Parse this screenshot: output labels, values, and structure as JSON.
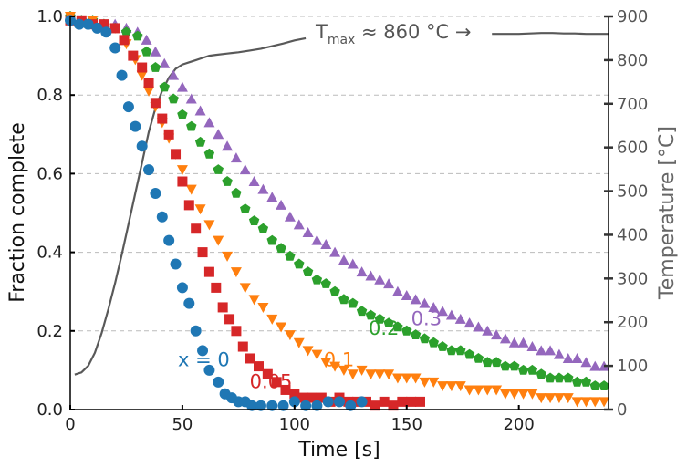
{
  "chart_data": {
    "type": "scatter",
    "xlabel": "Time [s]",
    "ylabel": "Fraction complete",
    "y2label": "Temperature [°C]",
    "xlim": [
      0,
      240
    ],
    "ylim": [
      0,
      1.0
    ],
    "y2lim": [
      0,
      900
    ],
    "xticks": [
      0,
      50,
      100,
      150,
      200
    ],
    "yticks": [
      0.0,
      0.2,
      0.4,
      0.6,
      0.8,
      1.0
    ],
    "yticklabels": [
      "0.0",
      "0.2",
      "0.4",
      "0.6",
      "0.8",
      "1.0"
    ],
    "y2ticks": [
      0,
      100,
      200,
      300,
      400,
      500,
      600,
      700,
      800,
      900
    ],
    "grid": "horizontal dashed",
    "annotation": {
      "text_pre": "T",
      "text_sub": "max",
      "text_post": " ≈ 860 °C →"
    },
    "temperature_line": {
      "color": "#595959",
      "x": [
        2,
        5,
        8,
        11,
        14,
        17,
        20,
        23,
        26,
        29,
        32,
        35,
        38,
        41,
        44,
        47,
        50,
        53,
        56,
        59,
        62,
        65,
        70,
        75,
        80,
        85,
        90,
        95,
        100,
        105,
        188,
        195,
        200,
        205,
        210,
        215,
        220,
        225,
        230,
        235,
        240
      ],
      "y": [
        80,
        85,
        100,
        130,
        175,
        230,
        290,
        355,
        425,
        495,
        565,
        635,
        690,
        730,
        760,
        780,
        790,
        795,
        800,
        805,
        810,
        812,
        815,
        818,
        822,
        826,
        832,
        838,
        845,
        850,
        860,
        860,
        860,
        861,
        862,
        862,
        861,
        861,
        860,
        860,
        860
      ]
    },
    "series": [
      {
        "name": "x = 0",
        "label": "x = 0",
        "marker": "circle",
        "color": "#1f77b4",
        "x": [
          0,
          4,
          8,
          12,
          16,
          20,
          23,
          26,
          29,
          32,
          35,
          38,
          41,
          44,
          47,
          50,
          53,
          56,
          59,
          62,
          66,
          69,
          72,
          75,
          78,
          81,
          85,
          90,
          95,
          100,
          105,
          110,
          115,
          120,
          125,
          130
        ],
        "y": [
          0.99,
          0.98,
          0.98,
          0.97,
          0.96,
          0.92,
          0.85,
          0.77,
          0.72,
          0.67,
          0.61,
          0.55,
          0.49,
          0.43,
          0.37,
          0.31,
          0.27,
          0.2,
          0.15,
          0.1,
          0.07,
          0.04,
          0.03,
          0.02,
          0.02,
          0.01,
          0.01,
          0.01,
          0.01,
          0.02,
          0.01,
          0.01,
          0.02,
          0.02,
          0.01,
          0.02
        ]
      },
      {
        "name": "0.05",
        "label": "0.05",
        "marker": "square",
        "color": "#d62728",
        "x": [
          0,
          5,
          10,
          15,
          20,
          24,
          28,
          32,
          35,
          38,
          41,
          44,
          47,
          50,
          53,
          56,
          59,
          62,
          65,
          68,
          71,
          74,
          77,
          80,
          84,
          88,
          92,
          96,
          100,
          104,
          108,
          112,
          116,
          120,
          124,
          128,
          132,
          136,
          140,
          144,
          148,
          152,
          156
        ],
        "y": [
          0.99,
          0.99,
          0.98,
          0.98,
          0.97,
          0.94,
          0.9,
          0.87,
          0.83,
          0.78,
          0.74,
          0.7,
          0.65,
          0.58,
          0.52,
          0.46,
          0.4,
          0.35,
          0.31,
          0.26,
          0.23,
          0.2,
          0.16,
          0.13,
          0.11,
          0.09,
          0.07,
          0.05,
          0.04,
          0.03,
          0.03,
          0.03,
          0.02,
          0.03,
          0.02,
          0.02,
          0.02,
          0.01,
          0.02,
          0.01,
          0.02,
          0.02,
          0.02
        ]
      },
      {
        "name": "0.1",
        "label": "0.1",
        "marker": "triangle-down",
        "color": "#ff7f0e",
        "x": [
          0,
          5,
          10,
          15,
          20,
          25,
          29,
          32,
          35,
          38,
          41,
          44,
          47,
          50,
          54,
          58,
          62,
          66,
          70,
          74,
          78,
          82,
          86,
          90,
          94,
          98,
          102,
          106,
          110,
          114,
          118,
          122,
          126,
          130,
          134,
          138,
          142,
          146,
          150,
          154,
          158,
          162,
          166,
          170,
          174,
          178,
          182,
          186,
          190,
          194,
          198,
          202,
          206,
          210,
          214,
          218,
          222,
          226,
          230,
          234,
          238
        ],
        "y": [
          1.0,
          0.99,
          0.99,
          0.98,
          0.97,
          0.93,
          0.89,
          0.85,
          0.81,
          0.77,
          0.73,
          0.69,
          0.65,
          0.61,
          0.56,
          0.51,
          0.47,
          0.43,
          0.39,
          0.35,
          0.31,
          0.28,
          0.26,
          0.23,
          0.21,
          0.19,
          0.17,
          0.15,
          0.14,
          0.12,
          0.11,
          0.1,
          0.09,
          0.1,
          0.09,
          0.09,
          0.09,
          0.08,
          0.08,
          0.08,
          0.07,
          0.07,
          0.06,
          0.06,
          0.06,
          0.05,
          0.05,
          0.05,
          0.05,
          0.04,
          0.04,
          0.04,
          0.04,
          0.03,
          0.03,
          0.03,
          0.03,
          0.02,
          0.02,
          0.02,
          0.02
        ]
      },
      {
        "name": "0.2",
        "label": "0.2",
        "marker": "pentagon",
        "color": "#2ca02c",
        "x": [
          0,
          5,
          10,
          15,
          20,
          25,
          30,
          34,
          38,
          42,
          46,
          50,
          54,
          58,
          62,
          66,
          70,
          74,
          78,
          82,
          86,
          90,
          94,
          98,
          102,
          106,
          110,
          114,
          118,
          122,
          126,
          130,
          134,
          138,
          142,
          146,
          150,
          154,
          158,
          162,
          166,
          170,
          174,
          178,
          182,
          186,
          190,
          194,
          198,
          202,
          206,
          210,
          214,
          218,
          222,
          226,
          230,
          234,
          238
        ],
        "y": [
          1.0,
          0.99,
          0.99,
          0.98,
          0.97,
          0.96,
          0.95,
          0.91,
          0.87,
          0.82,
          0.79,
          0.75,
          0.72,
          0.68,
          0.65,
          0.61,
          0.58,
          0.55,
          0.51,
          0.48,
          0.46,
          0.43,
          0.41,
          0.39,
          0.37,
          0.35,
          0.33,
          0.32,
          0.3,
          0.28,
          0.27,
          0.25,
          0.24,
          0.23,
          0.22,
          0.21,
          0.2,
          0.19,
          0.18,
          0.17,
          0.16,
          0.15,
          0.15,
          0.14,
          0.13,
          0.12,
          0.12,
          0.11,
          0.11,
          0.1,
          0.1,
          0.09,
          0.08,
          0.08,
          0.08,
          0.07,
          0.07,
          0.06,
          0.06
        ]
      },
      {
        "name": "0.3",
        "label": "0.3",
        "marker": "triangle-up",
        "color": "#9467bd",
        "x": [
          0,
          5,
          10,
          15,
          20,
          25,
          30,
          34,
          38,
          42,
          46,
          50,
          54,
          58,
          62,
          66,
          70,
          74,
          78,
          82,
          86,
          90,
          94,
          98,
          102,
          106,
          110,
          114,
          118,
          122,
          126,
          130,
          134,
          138,
          142,
          146,
          150,
          154,
          158,
          162,
          166,
          170,
          174,
          178,
          182,
          186,
          190,
          194,
          198,
          202,
          206,
          210,
          214,
          218,
          222,
          226,
          230,
          234,
          238
        ],
        "y": [
          1.0,
          0.99,
          0.99,
          0.98,
          0.98,
          0.97,
          0.96,
          0.94,
          0.91,
          0.88,
          0.85,
          0.82,
          0.79,
          0.76,
          0.73,
          0.7,
          0.67,
          0.64,
          0.61,
          0.58,
          0.56,
          0.54,
          0.52,
          0.49,
          0.47,
          0.45,
          0.43,
          0.42,
          0.4,
          0.38,
          0.37,
          0.35,
          0.34,
          0.33,
          0.32,
          0.3,
          0.29,
          0.28,
          0.27,
          0.26,
          0.25,
          0.24,
          0.23,
          0.22,
          0.21,
          0.2,
          0.19,
          0.18,
          0.17,
          0.17,
          0.16,
          0.15,
          0.15,
          0.14,
          0.13,
          0.13,
          0.12,
          0.11,
          0.11
        ]
      }
    ],
    "labels_on_plot": [
      {
        "series": 0,
        "x": 48,
        "y": 0.11
      },
      {
        "series": 1,
        "x": 80,
        "y": 0.055
      },
      {
        "series": 2,
        "x": 113,
        "y": 0.11
      },
      {
        "series": 3,
        "x": 133,
        "y": 0.19
      },
      {
        "series": 4,
        "x": 152,
        "y": 0.215
      }
    ]
  }
}
